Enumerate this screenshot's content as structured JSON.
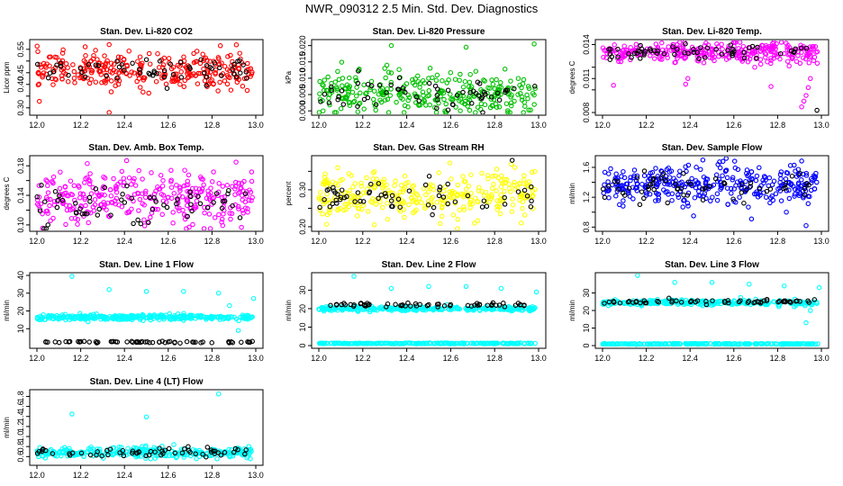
{
  "page": {
    "title": "NWR_090312  2.5 Min. Std. Dev. Diagnostics"
  },
  "chart_data": [
    {
      "type": "scatter",
      "title": "Stan. Dev. Li-820 CO2",
      "ylabel": "Licor ppm",
      "xlim": [
        12.0,
        13.0
      ],
      "ylim": [
        0.28,
        0.58
      ],
      "xticks": [
        "12.0",
        "12.2",
        "12.4",
        "12.6",
        "12.8",
        "13.0"
      ],
      "yticks": [
        0.3,
        0.35,
        0.4,
        0.45,
        0.5,
        0.55
      ],
      "ytick_labels": [
        "0.30",
        "",
        "0.40",
        "0.45",
        "",
        "0.55"
      ],
      "series": [
        {
          "color": "#ff0000",
          "base": 0.46,
          "spread": 0.1,
          "n": 300,
          "values": [
            [
              12.33,
              0.28
            ],
            [
              12.33,
              0.57
            ]
          ]
        },
        {
          "color": "#000000",
          "base": 0.46,
          "spread": 0.07,
          "n": 60
        }
      ]
    },
    {
      "type": "scatter",
      "title": "Stan. Dev. Li-820 Pressure",
      "ylabel": "kPa",
      "xlim": [
        12.0,
        13.0
      ],
      "ylim": [
        -0.0005,
        0.021
      ],
      "xticks": [
        "12.0",
        "12.2",
        "12.4",
        "12.6",
        "12.8",
        "13.0"
      ],
      "yticks": [
        0.0,
        0.005,
        0.01,
        0.015,
        0.02
      ],
      "ytick_labels": [
        "0.000",
        "0.005",
        "0.010",
        "0.015",
        "0.020"
      ],
      "series": [
        {
          "color": "#00c000",
          "base": 0.005,
          "spread": 0.0085,
          "n": 300,
          "values": [
            [
              12.33,
              0.02
            ],
            [
              12.67,
              0.0195
            ],
            [
              12.98,
              0.0205
            ],
            [
              12.3,
              0.013
            ],
            [
              12.31,
              0.014
            ]
          ]
        },
        {
          "color": "#000000",
          "base": 0.005,
          "spread": 0.006,
          "n": 60
        }
      ]
    },
    {
      "type": "scatter",
      "title": "Stan. Dev. Li-820 Temp.",
      "ylabel": "degrees C",
      "xlim": [
        12.0,
        13.0
      ],
      "ylim": [
        0.008,
        0.0142
      ],
      "xticks": [
        "12.0",
        "12.2",
        "12.4",
        "12.6",
        "12.8",
        "13.0"
      ],
      "yticks": [
        0.008,
        0.01,
        0.011,
        0.012,
        0.014
      ],
      "ytick_labels": [
        "0.008",
        "",
        "0.011",
        "",
        "0.014"
      ],
      "series": [
        {
          "color": "#ff00ff",
          "base": 0.0133,
          "spread": 0.0012,
          "n": 320,
          "values": [
            [
              12.91,
              0.0085
            ],
            [
              12.92,
              0.009
            ],
            [
              12.93,
              0.0095
            ],
            [
              12.94,
              0.0102
            ],
            [
              12.95,
              0.011
            ],
            [
              12.38,
              0.0105
            ],
            [
              12.39,
              0.011
            ],
            [
              12.77,
              0.0103
            ],
            [
              12.05,
              0.0104
            ]
          ]
        },
        {
          "color": "#000000",
          "base": 0.0133,
          "spread": 0.0009,
          "n": 60,
          "values": [
            [
              12.98,
              0.0082
            ]
          ]
        }
      ]
    },
    {
      "type": "scatter",
      "title": "Stan. Dev. Amb. Box Temp.",
      "ylabel": "degrees C",
      "xlim": [
        12.0,
        13.0
      ],
      "ylim": [
        0.095,
        0.19
      ],
      "xticks": [
        "12.0",
        "12.2",
        "12.4",
        "12.6",
        "12.8",
        "13.0"
      ],
      "yticks": [
        0.1,
        0.12,
        0.14,
        0.16,
        0.18
      ],
      "ytick_labels": [
        "0.10",
        "",
        "0.14",
        "",
        "0.18"
      ],
      "series": [
        {
          "color": "#ff00ff",
          "base": 0.135,
          "spread": 0.045,
          "n": 320,
          "values": [
            [
              12.41,
              0.187
            ],
            [
              12.23,
              0.183
            ],
            [
              12.91,
              0.185
            ]
          ]
        },
        {
          "color": "#000000",
          "base": 0.13,
          "spread": 0.035,
          "n": 60,
          "values": [
            [
              12.05,
              0.1
            ]
          ]
        }
      ]
    },
    {
      "type": "scatter",
      "title": "Stan. Dev. Gas Stream RH",
      "ylabel": "percent",
      "xlim": [
        12.0,
        13.0
      ],
      "ylim": [
        0.195,
        0.385
      ],
      "xticks": [
        "12.0",
        "12.2",
        "12.4",
        "12.6",
        "12.8",
        "13.0"
      ],
      "yticks": [
        0.2,
        0.25,
        0.3,
        0.35
      ],
      "ytick_labels": [
        "0.20",
        "",
        "0.30",
        ""
      ],
      "series": [
        {
          "color": "#ffff00",
          "base": 0.285,
          "spread": 0.085,
          "n": 320
        },
        {
          "color": "#000000",
          "base": 0.28,
          "spread": 0.06,
          "n": 60,
          "values": [
            [
              12.88,
              0.38
            ]
          ]
        }
      ]
    },
    {
      "type": "scatter",
      "title": "Stan. Dev. Sample Flow",
      "ylabel": "ml/min",
      "xlim": [
        12.0,
        13.0
      ],
      "ylim": [
        0.78,
        1.72
      ],
      "xticks": [
        "12.0",
        "12.2",
        "12.4",
        "12.6",
        "12.8",
        "13.0"
      ],
      "yticks": [
        0.8,
        1.0,
        1.2,
        1.4,
        1.6
      ],
      "ytick_labels": [
        "0.8",
        "",
        "1.2",
        "",
        "1.6"
      ],
      "series": [
        {
          "color": "#0000ff",
          "base": 1.35,
          "spread": 0.35,
          "n": 340,
          "values": [
            [
              12.93,
              0.82
            ],
            [
              12.84,
              1.0
            ],
            [
              12.55,
              1.68
            ]
          ]
        },
        {
          "color": "#000000",
          "base": 1.35,
          "spread": 0.25,
          "n": 60
        }
      ]
    },
    {
      "type": "scatter",
      "title": "Stan. Dev. Line 1 Flow",
      "ylabel": "ml/min",
      "xlim": [
        12.0,
        13.0
      ],
      "ylim": [
        0.5,
        40
      ],
      "xticks": [
        "12.0",
        "12.2",
        "12.4",
        "12.6",
        "12.8",
        "13.0"
      ],
      "yticks": [
        10,
        20,
        30,
        40
      ],
      "ytick_labels": [
        "10",
        "20",
        "30",
        "40"
      ],
      "series": [
        {
          "color": "#00ffff",
          "base": 16.5,
          "spread": 2.0,
          "n": 340,
          "values": [
            [
              12.16,
              39.5
            ],
            [
              12.33,
              32.0
            ],
            [
              12.5,
              31.0
            ],
            [
              12.67,
              31.0
            ],
            [
              12.83,
              30.0
            ],
            [
              12.99,
              27.0
            ],
            [
              12.88,
              23.0
            ],
            [
              12.92,
              9.0
            ]
          ]
        },
        {
          "color": "#000000",
          "base": 2.5,
          "spread": 0.5,
          "n": 60
        }
      ]
    },
    {
      "type": "scatter",
      "title": "Stan. Dev. Line 2 Flow",
      "ylabel": "ml/min",
      "xlim": [
        12.0,
        13.0
      ],
      "ylim": [
        0,
        38
      ],
      "xticks": [
        "12.0",
        "12.2",
        "12.4",
        "12.6",
        "12.8",
        "13.0"
      ],
      "yticks": [
        0,
        10,
        20,
        30
      ],
      "ytick_labels": [
        "0",
        "10",
        "20",
        "30"
      ],
      "series": [
        {
          "color": "#00ffff",
          "base": 20.0,
          "spread": 1.6,
          "n": 300,
          "values": [
            [
              12.16,
              37.5
            ],
            [
              12.33,
              31.0
            ],
            [
              12.5,
              32.0
            ],
            [
              12.67,
              32.0
            ],
            [
              12.83,
              31.0
            ],
            [
              12.99,
              29.0
            ]
          ]
        },
        {
          "color": "#00ffff",
          "base": 1.2,
          "spread": 0.3,
          "n": 240
        },
        {
          "color": "#000000",
          "base": 22.0,
          "spread": 1.4,
          "n": 60
        }
      ]
    },
    {
      "type": "scatter",
      "title": "Stan. Dev. Line 3 Flow",
      "ylabel": "ml/min",
      "xlim": [
        12.0,
        13.0
      ],
      "ylim": [
        0,
        40
      ],
      "xticks": [
        "12.0",
        "12.2",
        "12.4",
        "12.6",
        "12.8",
        "13.0"
      ],
      "yticks": [
        0,
        10,
        20,
        30
      ],
      "ytick_labels": [
        "0",
        "10",
        "20",
        "30"
      ],
      "series": [
        {
          "color": "#00ffff",
          "base": 24.5,
          "spread": 2.0,
          "n": 300,
          "values": [
            [
              12.16,
              40.0
            ],
            [
              12.33,
              36.0
            ],
            [
              12.5,
              36.0
            ],
            [
              12.67,
              35.0
            ],
            [
              12.83,
              34.0
            ],
            [
              12.99,
              33.0
            ],
            [
              12.93,
              13.0
            ],
            [
              12.95,
              20.0
            ]
          ]
        },
        {
          "color": "#00ffff",
          "base": 1.0,
          "spread": 0.3,
          "n": 240
        },
        {
          "color": "#000000",
          "base": 25.0,
          "spread": 1.6,
          "n": 60
        }
      ]
    },
    {
      "type": "scatter",
      "title": "Stan. Dev. Line 4 (LT) Flow",
      "ylabel": "ml/min",
      "xlim": [
        12.0,
        13.0
      ],
      "ylim": [
        0.48,
        1.88
      ],
      "xticks": [
        "12.0",
        "12.2",
        "12.4",
        "12.6",
        "12.8",
        "13.0"
      ],
      "yticks": [
        0.6,
        0.8,
        1.0,
        1.2,
        1.4,
        1.6,
        1.8
      ],
      "ytick_labels": [
        "0.6",
        "0.8",
        "1.0",
        "1.2",
        "1.4",
        "1.6",
        "1.8"
      ],
      "series": [
        {
          "color": "#00ffff",
          "base": 0.68,
          "spread": 0.14,
          "n": 340,
          "values": [
            [
              12.16,
              1.45
            ],
            [
              12.5,
              1.39
            ],
            [
              12.83,
              1.85
            ]
          ]
        },
        {
          "color": "#000000",
          "base": 0.68,
          "spread": 0.12,
          "n": 60
        }
      ]
    }
  ]
}
